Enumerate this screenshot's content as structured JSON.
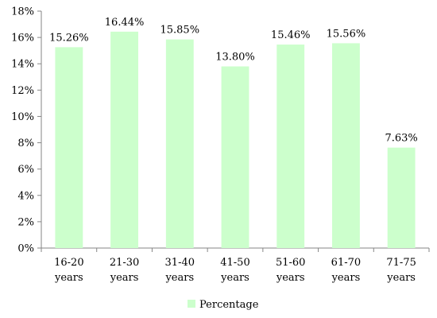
{
  "chart_data": {
    "type": "bar",
    "categories": [
      [
        "16-20",
        "years"
      ],
      [
        "21-30",
        "years"
      ],
      [
        "31-40",
        "years"
      ],
      [
        "41-50",
        "years"
      ],
      [
        "51-60",
        "years"
      ],
      [
        "61-70",
        "years"
      ],
      [
        "71-75",
        "years"
      ]
    ],
    "series": [
      {
        "name": "Percentage",
        "values": [
          15.26,
          16.44,
          15.85,
          13.8,
          15.46,
          15.56,
          7.63
        ],
        "data_labels": [
          "15.26%",
          "16.44%",
          "15.85%",
          "13.80%",
          "15.46%",
          "15.56%",
          "7.63%"
        ],
        "color": "#ccffcc"
      }
    ],
    "ylim": [
      0,
      18
    ],
    "yticks": [
      0,
      2,
      4,
      6,
      8,
      10,
      12,
      14,
      16,
      18
    ],
    "ytick_labels": [
      "0%",
      "2%",
      "4%",
      "6%",
      "8%",
      "10%",
      "12%",
      "14%",
      "16%",
      "18%"
    ],
    "grid": false,
    "legend_position": "bottom-center",
    "axis_color": "#868686"
  }
}
